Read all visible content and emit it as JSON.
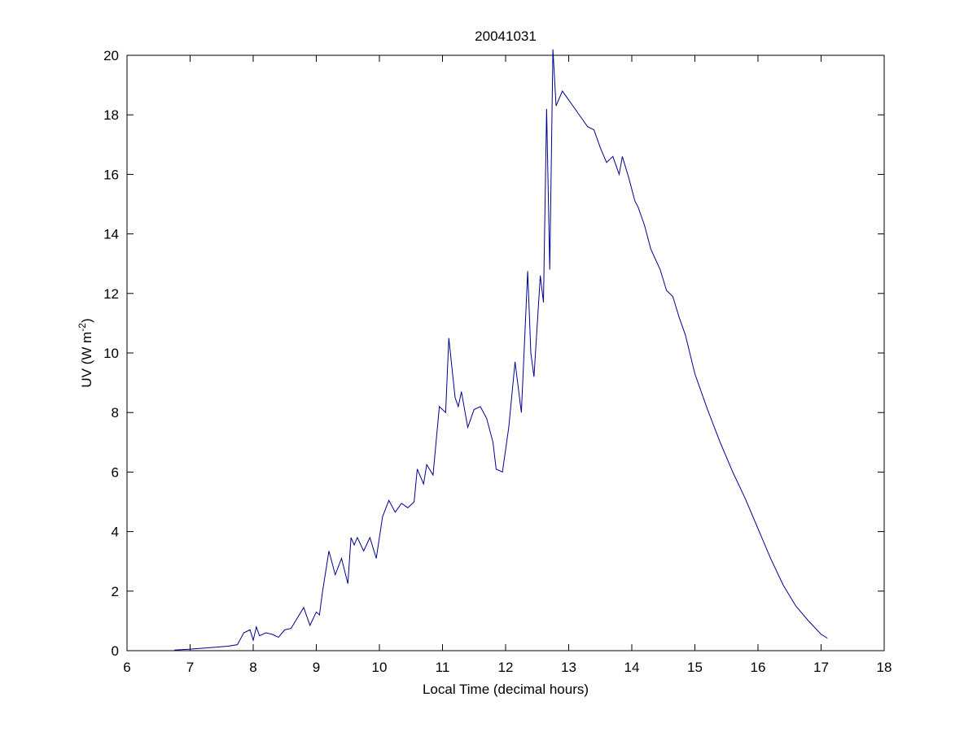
{
  "chart_data": {
    "type": "line",
    "title": "20041031",
    "xlabel": "Local Time (decimal hours)",
    "ylabel": [
      "UV (W m",
      "-2",
      ")"
    ],
    "xlim": [
      6,
      18
    ],
    "xticks": [
      6,
      7,
      8,
      9,
      10,
      11,
      12,
      13,
      14,
      15,
      16,
      17,
      18
    ],
    "ylim": [
      0,
      20
    ],
    "yticks": [
      0,
      2,
      4,
      6,
      8,
      10,
      12,
      14,
      16,
      18,
      20
    ],
    "grid": false,
    "series": [
      {
        "color": "#000090",
        "x": [
          6.75,
          7.0,
          7.3,
          7.6,
          7.75,
          7.85,
          7.95,
          8.0,
          8.05,
          8.1,
          8.2,
          8.3,
          8.4,
          8.5,
          8.6,
          8.7,
          8.8,
          8.9,
          9.0,
          9.05,
          9.1,
          9.2,
          9.3,
          9.4,
          9.5,
          9.55,
          9.6,
          9.65,
          9.75,
          9.85,
          9.95,
          10.05,
          10.15,
          10.25,
          10.35,
          10.45,
          10.55,
          10.6,
          10.7,
          10.75,
          10.85,
          10.95,
          11.05,
          11.1,
          11.2,
          11.25,
          11.3,
          11.4,
          11.5,
          11.6,
          11.7,
          11.8,
          11.85,
          11.95,
          12.05,
          12.15,
          12.25,
          12.35,
          12.4,
          12.45,
          12.55,
          12.6,
          12.65,
          12.7,
          12.75,
          12.8,
          12.9,
          13.0,
          13.1,
          13.2,
          13.3,
          13.4,
          13.5,
          13.6,
          13.7,
          13.8,
          13.85,
          13.95,
          14.05,
          14.1,
          14.2,
          14.3,
          14.45,
          14.55,
          14.65,
          14.75,
          14.85,
          15.0,
          15.2,
          15.4,
          15.6,
          15.8,
          16.0,
          16.2,
          16.4,
          16.6,
          16.8,
          17.0,
          17.1
        ],
        "values": [
          0.02,
          0.05,
          0.1,
          0.15,
          0.2,
          0.6,
          0.7,
          0.35,
          0.8,
          0.5,
          0.6,
          0.55,
          0.45,
          0.7,
          0.75,
          1.1,
          1.45,
          0.85,
          1.3,
          1.2,
          2.0,
          3.35,
          2.55,
          3.1,
          2.25,
          3.8,
          3.55,
          3.8,
          3.35,
          3.8,
          3.1,
          4.5,
          5.05,
          4.65,
          4.95,
          4.8,
          5.0,
          6.1,
          5.6,
          6.25,
          5.9,
          8.2,
          8.0,
          10.5,
          8.5,
          8.2,
          8.7,
          7.5,
          8.1,
          8.2,
          7.8,
          7.0,
          6.1,
          6.0,
          7.5,
          9.7,
          8.0,
          12.75,
          10.0,
          9.2,
          12.6,
          11.7,
          18.2,
          12.8,
          20.2,
          18.3,
          18.8,
          18.5,
          18.2,
          17.9,
          17.6,
          17.5,
          16.9,
          16.4,
          16.6,
          16.0,
          16.6,
          15.9,
          15.1,
          14.9,
          14.3,
          13.5,
          12.8,
          12.1,
          11.9,
          11.2,
          10.6,
          9.3,
          8.1,
          7.0,
          6.0,
          5.1,
          4.1,
          3.1,
          2.2,
          1.5,
          1.0,
          0.55,
          0.42
        ]
      }
    ]
  }
}
